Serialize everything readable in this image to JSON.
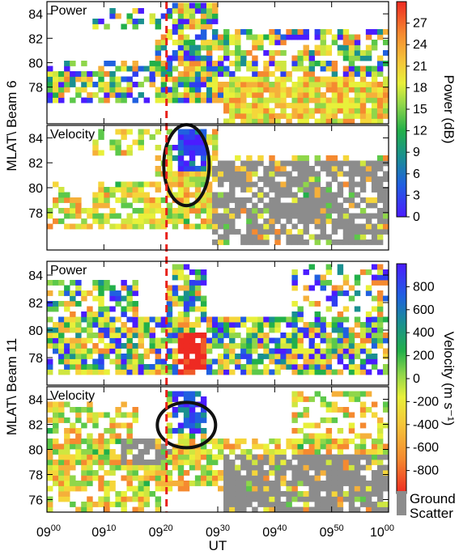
{
  "figure": {
    "xlabel": "UT",
    "x_ticks": [
      {
        "hour": "09",
        "min": "00"
      },
      {
        "hour": "09",
        "min": "10"
      },
      {
        "hour": "09",
        "min": "20"
      },
      {
        "hour": "09",
        "min": "30"
      },
      {
        "hour": "09",
        "min": "40"
      },
      {
        "hour": "09",
        "min": "50"
      },
      {
        "hour": "10",
        "min": "00"
      }
    ],
    "event_time_ut": "09:21",
    "event_line_color": "#e8211a",
    "ground_scatter_color": "#8c8c8c",
    "ground_scatter_label_1": "Ground",
    "ground_scatter_label_2": "Scatter"
  },
  "groups": [
    {
      "ylabel": "MLAT\\ Beam 6",
      "panels": [
        {
          "label": "Power",
          "kind": "power",
          "yticks": [
            "84",
            "82",
            "80",
            "78"
          ],
          "ylim": [
            75,
            85
          ],
          "circle": false
        },
        {
          "label": "Velocity",
          "kind": "velocity",
          "yticks": [
            "84",
            "82",
            "80",
            "78"
          ],
          "ylim": [
            75,
            85
          ],
          "circle": true
        }
      ]
    },
    {
      "ylabel": "MLAT\\ Beam 11",
      "panels": [
        {
          "label": "Power",
          "kind": "power",
          "yticks": [
            "84",
            "82",
            "80",
            "78"
          ],
          "ylim": [
            76,
            85
          ],
          "circle": false
        },
        {
          "label": "Velocity",
          "kind": "velocity",
          "yticks": [
            "84",
            "82",
            "80",
            "78",
            "76"
          ],
          "ylim": [
            75,
            85
          ],
          "circle": true
        }
      ]
    }
  ],
  "colorbars": [
    {
      "title": "Power (dB)",
      "range": [
        0,
        30
      ],
      "ticks": [
        "27",
        "24",
        "21",
        "18",
        "15",
        "12",
        "9",
        "6",
        "3",
        "0"
      ],
      "scale": "power"
    },
    {
      "title": "Velocity (m s⁻¹)",
      "range": [
        -1000,
        1000
      ],
      "ticks": [
        "800",
        "600",
        "400",
        "200",
        "0",
        "-200",
        "-400",
        "-600",
        "-800"
      ],
      "scale": "velocity"
    }
  ],
  "chart_data": {
    "type": "heatmap",
    "title": "",
    "xlabel": "UT",
    "x_range": [
      "09:00",
      "10:00"
    ],
    "series": [
      {
        "name": "Beam 6 Power",
        "units": "dB",
        "range": [
          0,
          30
        ]
      },
      {
        "name": "Beam 6 Velocity",
        "units": "m s⁻¹",
        "range": [
          -1000,
          1000
        ]
      },
      {
        "name": "Beam 11 Power",
        "units": "dB",
        "range": [
          0,
          30
        ]
      },
      {
        "name": "Beam 11 Velocity",
        "units": "m s⁻¹",
        "range": [
          -1000,
          1000
        ]
      }
    ],
    "annotations": [
      "vertical dashed line at 09:21 UT",
      "ellipse around ~09:24 UT, 81-84 MLAT in velocity panels"
    ]
  }
}
